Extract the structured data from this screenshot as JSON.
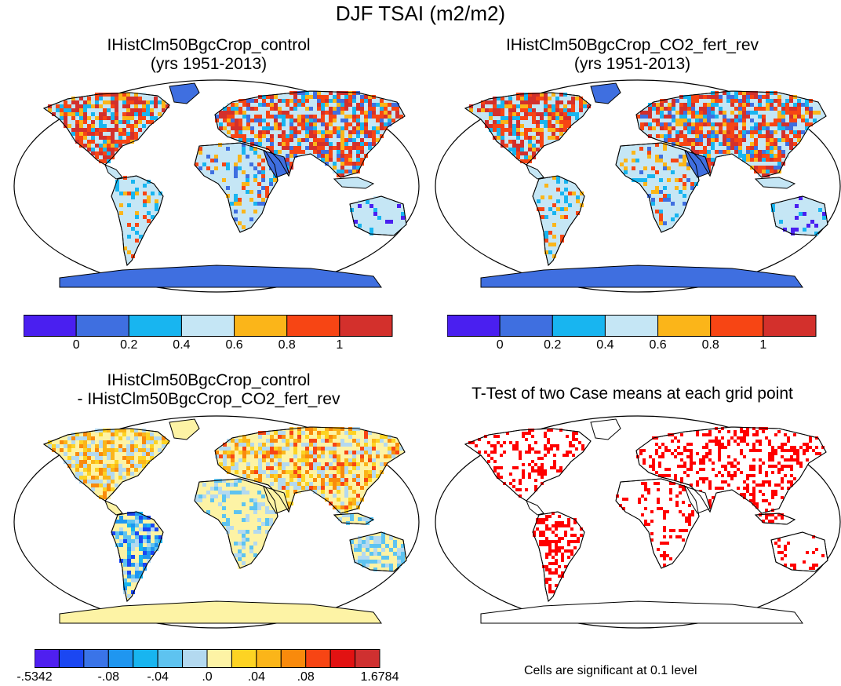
{
  "title": "DJF TSAI (m2/m2)",
  "panels": {
    "top_left": {
      "title_line1": "IHistClm50BgcCrop_control",
      "title_line2": "(yrs 1951-2013)"
    },
    "top_right": {
      "title_line1": "IHistClm50BgcCrop_CO2_fert_rev",
      "title_line2": "(yrs 1951-2013)"
    },
    "bottom_left": {
      "title_line1": "IHistClm50BgcCrop_control",
      "title_line2": "- IHistClm50BgcCrop_CO2_fert_rev"
    },
    "bottom_right": {
      "title_line1": "T-Test of two Case means at each grid point",
      "caption": "Cells are significant at 0.1 level"
    }
  },
  "colorbar_main": {
    "colors": [
      "#4a1ff0",
      "#3f6fe0",
      "#18b5f0",
      "#c5e6f5",
      "#fbb519",
      "#f74514",
      "#d3302c"
    ],
    "ticks": [
      "0",
      "0.2",
      "0.4",
      "0.6",
      "0.8",
      "1"
    ]
  },
  "colorbar_diff": {
    "colors": [
      "#4f1ff0",
      "#1b47f2",
      "#3a74e8",
      "#1f96f0",
      "#18b5f0",
      "#5ec3f0",
      "#b3d9f0",
      "#fdf3a5",
      "#fdd323",
      "#fbb519",
      "#f98a0c",
      "#f74514",
      "#e21212",
      "#cf3030"
    ],
    "ticks": [
      "-.5342",
      "-.08",
      "-.04",
      ".0",
      ".04",
      ".08",
      "1.6784"
    ]
  },
  "legend": {
    "significant_color": "#ff0000"
  }
}
